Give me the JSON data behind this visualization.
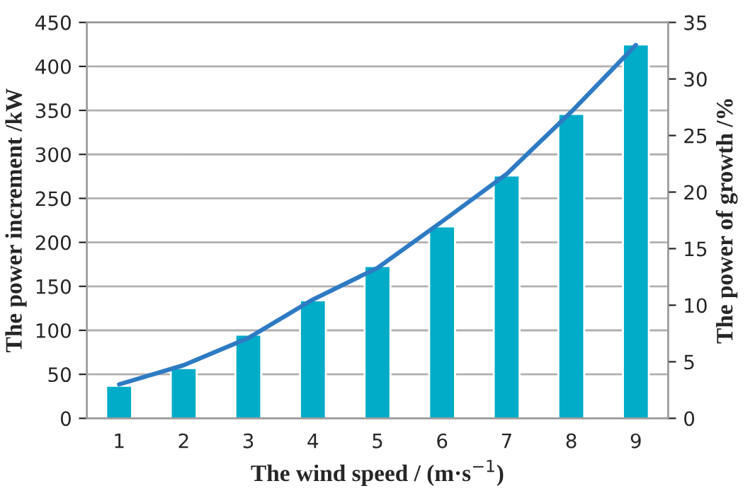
{
  "chart_data": {
    "type": "bar",
    "categories": [
      "1",
      "2",
      "3",
      "4",
      "5",
      "6",
      "7",
      "8",
      "9"
    ],
    "xlabel": "The wind speed / (m·s$^{−1}$)",
    "ylabel": "The power increment /kW",
    "y2label": "The power of growth /%",
    "series": [
      {
        "color": "#00acc8",
        "values": [
          37,
          57,
          95,
          134,
          173,
          218,
          276,
          346,
          425
        ]
      },
      {
        "type": "line",
        "axis": "y2",
        "color": "#2e7bc4",
        "values": [
          3.0,
          4.7,
          7.1,
          10.5,
          13.3,
          17.4,
          21.6,
          27.1,
          33.0
        ]
      }
    ],
    "ylim": [
      0,
      450
    ],
    "yticks": [
      0,
      50,
      100,
      150,
      200,
      250,
      300,
      350,
      400,
      450
    ],
    "y2lim": [
      0,
      35
    ],
    "y2ticks": [
      0,
      5,
      10,
      15,
      20,
      25,
      30,
      35
    ],
    "grid": "y",
    "marker": "none",
    "line_style": "solid"
  }
}
